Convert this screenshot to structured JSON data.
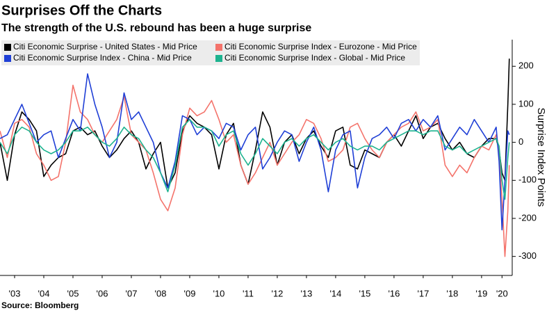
{
  "chart_data": {
    "type": "line",
    "title": "Surprises Off the Charts",
    "subtitle": "The strength of the U.S. rebound has been a huge surprise",
    "y_label": "Surprise Index Points",
    "source": "Source: Bloomberg",
    "legend": "upper left",
    "grid": false,
    "x": [
      2003.0,
      2003.25,
      2003.5,
      2003.75,
      2004.0,
      2004.25,
      2004.5,
      2004.75,
      2005.0,
      2005.25,
      2005.5,
      2005.75,
      2006.0,
      2006.25,
      2006.5,
      2006.75,
      2007.0,
      2007.25,
      2007.5,
      2007.75,
      2008.0,
      2008.25,
      2008.5,
      2008.75,
      2009.0,
      2009.25,
      2009.5,
      2009.75,
      2010.0,
      2010.25,
      2010.5,
      2010.75,
      2011.0,
      2011.25,
      2011.5,
      2011.75,
      2012.0,
      2012.25,
      2012.5,
      2012.75,
      2013.0,
      2013.25,
      2013.5,
      2013.75,
      2014.0,
      2014.25,
      2014.5,
      2014.75,
      2015.0,
      2015.25,
      2015.5,
      2015.75,
      2016.0,
      2016.25,
      2016.5,
      2016.75,
      2017.0,
      2017.25,
      2017.5,
      2017.75,
      2018.0,
      2018.25,
      2018.5,
      2018.75,
      2019.0,
      2019.25,
      2019.5,
      2019.75,
      2020.0,
      2020.1,
      2020.2,
      2020.3,
      2020.4,
      2020.45
    ],
    "series": [
      {
        "name": "Citi Economic Surprise - United States - Mid Price",
        "color": "#000000",
        "values": [
          0,
          -100,
          20,
          80,
          60,
          30,
          -90,
          -60,
          -40,
          -30,
          30,
          40,
          20,
          30,
          -10,
          -40,
          -20,
          10,
          30,
          0,
          -70,
          -30,
          0,
          -120,
          -80,
          30,
          70,
          50,
          40,
          20,
          -70,
          20,
          50,
          -60,
          -110,
          -20,
          80,
          40,
          -60,
          0,
          20,
          -30,
          10,
          30,
          -10,
          -40,
          30,
          40,
          -60,
          -70,
          -20,
          -30,
          -40,
          0,
          20,
          -10,
          30,
          70,
          10,
          40,
          50,
          10,
          -20,
          0,
          -30,
          -40,
          -10,
          10,
          10,
          -20,
          -80,
          -100,
          100,
          220
        ]
      },
      {
        "name": "Citi Economic Surprise Index - Eurozone - Mid Price",
        "color": "#f4736b",
        "values": [
          30,
          -40,
          50,
          60,
          40,
          -30,
          -60,
          -100,
          -90,
          0,
          150,
          80,
          60,
          20,
          0,
          30,
          60,
          120,
          20,
          0,
          -20,
          -80,
          -150,
          -180,
          -120,
          20,
          90,
          70,
          80,
          110,
          60,
          0,
          20,
          -60,
          -110,
          -80,
          -40,
          0,
          -60,
          -30,
          0,
          20,
          60,
          50,
          10,
          -50,
          -40,
          -20,
          40,
          50,
          10,
          -20,
          -40,
          0,
          20,
          40,
          50,
          80,
          30,
          40,
          60,
          -60,
          -90,
          -60,
          -80,
          -40,
          -10,
          -20,
          20,
          -20,
          -150,
          -300,
          -180,
          -60
        ]
      },
      {
        "name": "Citi Economic Surprise Index - China - Mid Price",
        "color": "#1f3fd6",
        "values": [
          10,
          20,
          60,
          100,
          50,
          0,
          20,
          30,
          -40,
          10,
          60,
          30,
          180,
          100,
          40,
          -40,
          0,
          130,
          60,
          80,
          40,
          0,
          -80,
          -120,
          -50,
          70,
          60,
          20,
          40,
          30,
          10,
          50,
          40,
          -20,
          20,
          40,
          -70,
          -40,
          0,
          30,
          20,
          -50,
          0,
          40,
          -20,
          -130,
          -20,
          20,
          30,
          -120,
          -40,
          10,
          20,
          40,
          10,
          50,
          60,
          30,
          60,
          40,
          70,
          -20,
          10,
          40,
          20,
          60,
          30,
          0,
          40,
          -50,
          -230,
          -100,
          30,
          20
        ]
      },
      {
        "name": "Citi Economic Surprise Index - Global - Mid Price",
        "color": "#1db38f",
        "values": [
          0,
          -30,
          20,
          40,
          30,
          0,
          -20,
          -30,
          -20,
          0,
          30,
          30,
          40,
          20,
          0,
          -10,
          10,
          40,
          20,
          10,
          -20,
          -40,
          -80,
          -130,
          -60,
          40,
          60,
          40,
          40,
          30,
          -10,
          20,
          30,
          -30,
          -60,
          -30,
          10,
          -10,
          -30,
          0,
          10,
          -10,
          10,
          20,
          0,
          -20,
          0,
          10,
          -10,
          -20,
          -10,
          -10,
          -20,
          0,
          10,
          20,
          30,
          30,
          20,
          30,
          30,
          -10,
          -20,
          -10,
          -30,
          -20,
          -10,
          0,
          10,
          -10,
          -100,
          -150,
          -40,
          0
        ]
      }
    ],
    "xlim": [
      2003.0,
      2020.55
    ],
    "xticks": [
      {
        "value": 2003.5,
        "label": "'03"
      },
      {
        "value": 2004.5,
        "label": "'04"
      },
      {
        "value": 2005.5,
        "label": "'05"
      },
      {
        "value": 2006.5,
        "label": "'06"
      },
      {
        "value": 2007.5,
        "label": "'07"
      },
      {
        "value": 2008.5,
        "label": "'08"
      },
      {
        "value": 2009.5,
        "label": "'09"
      },
      {
        "value": 2010.5,
        "label": "'10"
      },
      {
        "value": 2011.5,
        "label": "'11"
      },
      {
        "value": 2012.5,
        "label": "'12"
      },
      {
        "value": 2013.5,
        "label": "'13"
      },
      {
        "value": 2014.5,
        "label": "'14"
      },
      {
        "value": 2015.5,
        "label": "'15"
      },
      {
        "value": 2016.5,
        "label": "'16"
      },
      {
        "value": 2017.5,
        "label": "'17"
      },
      {
        "value": 2018.5,
        "label": "'18"
      },
      {
        "value": 2019.5,
        "label": "'19"
      },
      {
        "value": 2020.2,
        "label": "'20"
      }
    ],
    "ylim": [
      -350,
      270
    ],
    "yticks": [
      -300,
      -200,
      -100,
      0,
      100,
      200
    ]
  }
}
